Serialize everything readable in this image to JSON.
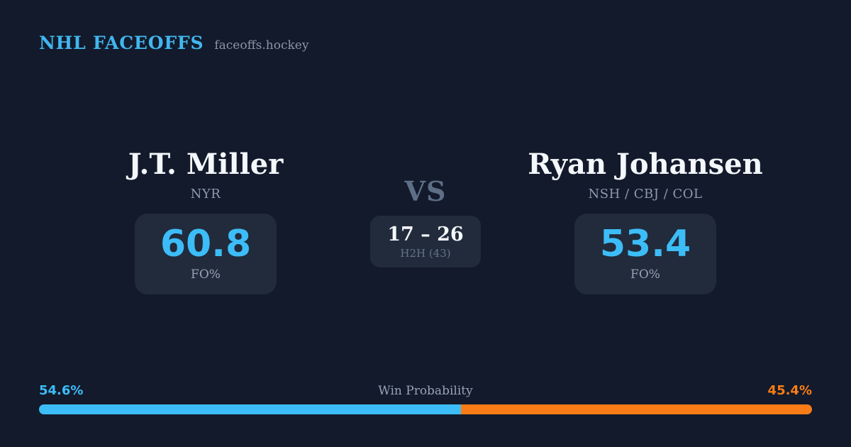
{
  "header": {
    "brand": "NHL FACEOFFS",
    "domain": "faceoffs.hockey"
  },
  "players": {
    "left": {
      "name": "J.T. Miller",
      "teams": "NYR",
      "fo_pct": "60.8",
      "stat_label": "FO%",
      "win_prob_label": "54.6%",
      "accent_color": "#3cbdf8"
    },
    "right": {
      "name": "Ryan Johansen",
      "teams": "NSH / CBJ / COL",
      "fo_pct": "53.4",
      "stat_label": "FO%",
      "win_prob_label": "45.4%",
      "accent_color": "#f97c16"
    }
  },
  "center": {
    "vs": "VS",
    "h2h_score": "17 – 26",
    "h2h_label": "H2H (43)"
  },
  "win_bar": {
    "label": "Win Probability",
    "left_value": 54.6,
    "right_value": 45.4,
    "left_color": "#3cbdf8",
    "right_color": "#f97c16"
  },
  "colors": {
    "background": "#121a2b",
    "card_box": "#212b3b",
    "text_primary": "#f4f7fb",
    "text_muted": "#8d9aae",
    "vs_text": "#5d6e86",
    "brand_blue": "#41b6ee"
  }
}
